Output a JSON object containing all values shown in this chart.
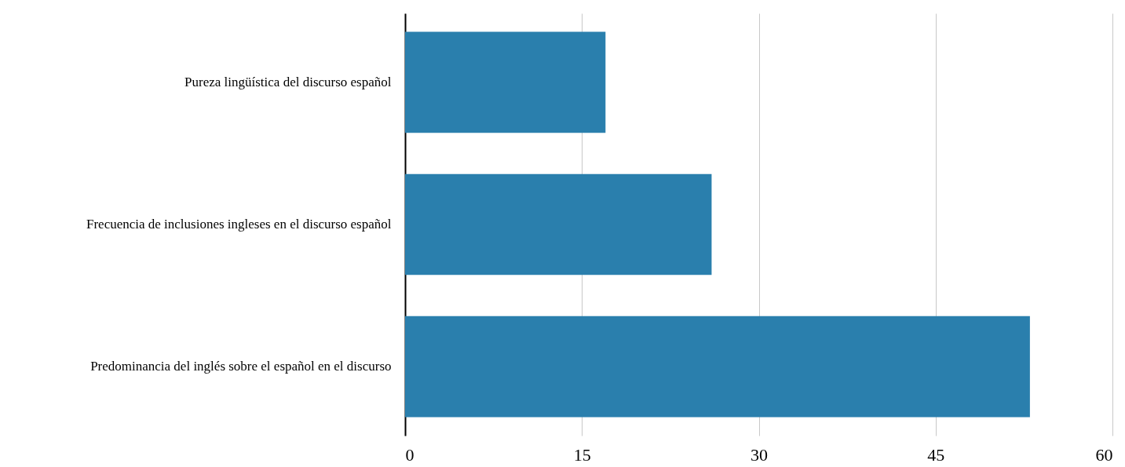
{
  "chart_data": {
    "type": "bar",
    "orientation": "horizontal",
    "categories": [
      "Pureza lingüística del discurso español",
      "Frecuencia de inclusiones ingleses en el discurso español",
      "Predominancia del inglés sobre el español en el discurso"
    ],
    "values": [
      17,
      26,
      53
    ],
    "color": "#2a7fad",
    "xlim": [
      0,
      60
    ],
    "xticks": [
      0,
      15,
      30,
      45,
      60
    ],
    "grid": "x"
  }
}
